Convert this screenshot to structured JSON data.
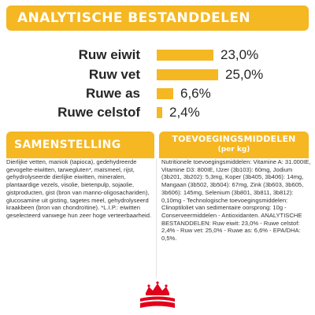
{
  "analysis": {
    "title": "ANALYTISCHE BESTANDDELEN",
    "rows": [
      {
        "label": "Ruw eiwit",
        "value": "23,0%",
        "amount": 23.0
      },
      {
        "label": "Ruw vet",
        "value": "25,0%",
        "amount": 25.0
      },
      {
        "label": "Ruwe as",
        "value": "6,6%",
        "amount": 6.6
      },
      {
        "label": "Ruwe celstof",
        "value": "2,4%",
        "amount": 2.4
      }
    ]
  },
  "composition": {
    "title": "SAMENSTELLING",
    "text": "Dierlijke vetten, maniok (tapioca), gedehydreerde gevogelte-eiwitten, tarwegluten*, maïsmeel, rijst, gehydrolyseerde dierlijke eiwitten, mineralen, plantaardige vezels, visolie, bietenpulp, sojaolie, gistproducten, gist (bron van manno-oligosachariden), glucosamine uit gisting, tagetes meel, gehydrolyseerd kraakbeen (bron van chondroïtine). *L.I.P.: eiwitten geselecteerd vanwege hun zeer hoge verteerbaarheid."
  },
  "additives": {
    "title": "TOEVOEGINGSMIDDELEN",
    "subtitle": "(per kg)",
    "text": "Nutritionele toevoegingsmiddelen: Vitamine A: 31.000IE, Vitamine D3: 800IE, IJzer (3b103): 60mg, Jodium (3b201, 3b202): 5,3mg, Koper (3b405, 3b406): 14mg, Mangaan (3b502, 3b504): 67mg, Zink (3b603, 3b605, 3b606): 145mg, Selenium (3b801, 3b811, 3b812): 0,10mg - Technologische toevoegingsmiddelen: Clinoptiloliet van sedimentaire oorsprong: 10g - Conserveermiddelen - Antioxidanten. ANALYTISCHE BESTANDDELEN: Ruw eiwit: 23,0% - Ruwe celstof: 2,4% - Ruw vet: 25,0% - Ruwe as: 6,6% - EPA/DHA: 0,5%."
  },
  "brand": {
    "logo": "royal-canin-logo-icon",
    "color": "#e2001a"
  },
  "colors": {
    "accent": "#f5b722",
    "text": "#262626"
  }
}
